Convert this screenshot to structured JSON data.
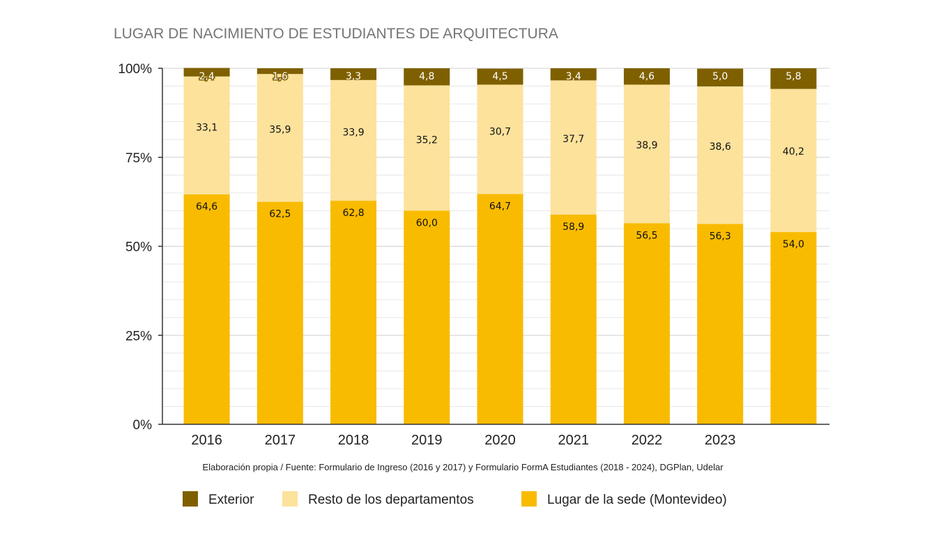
{
  "chart_data": {
    "type": "bar",
    "stacked": true,
    "title": "LUGAR DE NACIMIENTO DE ESTUDIANTES DE ARQUITECTURA",
    "categories": [
      "2016",
      "2017",
      "2018",
      "2019",
      "2020",
      "2021",
      "2022",
      "2023",
      ""
    ],
    "series": [
      {
        "name": "Lugar de la sede (Montevideo)",
        "color": "#f9bb00",
        "values": [
          64.6,
          62.5,
          62.8,
          60.0,
          64.7,
          58.9,
          56.5,
          56.3,
          54.0
        ],
        "labels": [
          "64,6",
          "62,5",
          "62,8",
          "60,0",
          "64,7",
          "58,9",
          "56,5",
          "56,3",
          "54,0"
        ]
      },
      {
        "name": "Resto de los departamentos",
        "color": "#fde29c",
        "values": [
          33.1,
          35.9,
          33.9,
          35.2,
          30.7,
          37.7,
          38.9,
          38.6,
          40.2
        ],
        "labels": [
          "33,1",
          "35,9",
          "33,9",
          "35,2",
          "30,7",
          "37,7",
          "38,9",
          "38,6",
          "40,2"
        ]
      },
      {
        "name": "Exterior",
        "color": "#7f6000",
        "values": [
          2.4,
          1.6,
          3.3,
          4.8,
          4.5,
          3.4,
          4.6,
          5.0,
          5.8
        ],
        "labels": [
          "2,4",
          "1,6",
          "3,3",
          "4,8",
          "4,5",
          "3,4",
          "4,6",
          "5,0",
          "5,8"
        ]
      }
    ],
    "yticks": [
      "0%",
      "25%",
      "50%",
      "75%",
      "100%"
    ],
    "ylim": [
      0,
      100
    ],
    "grid": true,
    "legend": [
      "Exterior",
      "Resto de los departamentos",
      "Lugar de la sede (Montevideo)"
    ],
    "legend_position": "bottom",
    "source": "Elaboración propia / Fuente: Formulario de Ingreso (2016 y 2017) y Formulario FormA Estudiantes (2018 - 2024), DGPlan, Udelar"
  }
}
